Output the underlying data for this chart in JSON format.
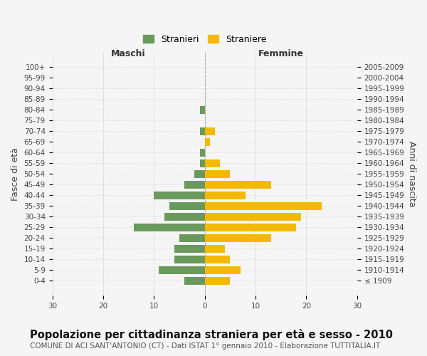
{
  "age_groups": [
    "100+",
    "95-99",
    "90-94",
    "85-89",
    "80-84",
    "75-79",
    "70-74",
    "65-69",
    "60-64",
    "55-59",
    "50-54",
    "45-49",
    "40-44",
    "35-39",
    "30-34",
    "25-29",
    "20-24",
    "15-19",
    "10-14",
    "5-9",
    "0-4"
  ],
  "birth_years": [
    "≤ 1909",
    "1910-1914",
    "1915-1919",
    "1920-1924",
    "1925-1929",
    "1930-1934",
    "1935-1939",
    "1940-1944",
    "1945-1949",
    "1950-1954",
    "1955-1959",
    "1960-1964",
    "1965-1969",
    "1970-1974",
    "1975-1979",
    "1980-1984",
    "1985-1989",
    "1990-1994",
    "1995-1999",
    "2000-2004",
    "2005-2009"
  ],
  "males": [
    0,
    0,
    0,
    0,
    1,
    0,
    1,
    0,
    1,
    1,
    2,
    4,
    10,
    7,
    8,
    14,
    5,
    6,
    6,
    9,
    4
  ],
  "females": [
    0,
    0,
    0,
    0,
    0,
    0,
    2,
    1,
    0,
    3,
    5,
    13,
    8,
    23,
    19,
    18,
    13,
    4,
    5,
    7,
    5
  ],
  "male_color": "#6a9a5b",
  "female_color": "#f5b800",
  "background_color": "#f5f5f5",
  "grid_color": "#cccccc",
  "title": "Popolazione per cittadinanza straniera per età e sesso - 2010",
  "subtitle": "COMUNE DI ACI SANT'ANTONIO (CT) - Dati ISTAT 1° gennaio 2010 - Elaborazione TUTTITALIA.IT",
  "xlabel_left": "Maschi",
  "xlabel_right": "Femmine",
  "ylabel_left": "Fasce di età",
  "ylabel_right": "Anni di nascita",
  "legend_male": "Stranieri",
  "legend_female": "Straniere",
  "xlim": 30,
  "title_fontsize": 10.5,
  "subtitle_fontsize": 7.5,
  "tick_fontsize": 7.5,
  "label_fontsize": 9
}
